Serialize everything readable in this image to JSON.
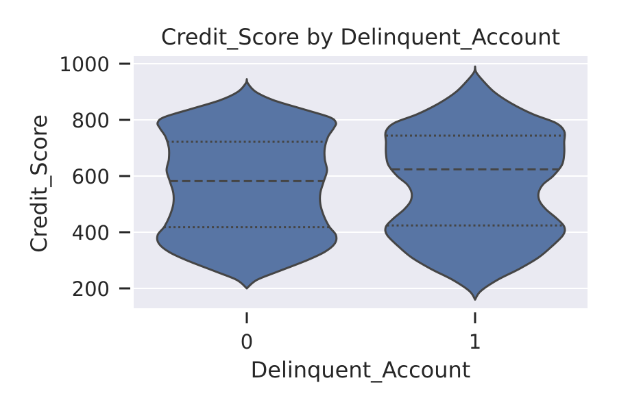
{
  "chart_data": {
    "type": "violin",
    "title": "Credit_Score by Delinquent_Account",
    "xlabel": "Delinquent_Account",
    "ylabel": "Credit_Score",
    "categories": [
      "0",
      "1"
    ],
    "ylim": [
      130,
      1010
    ],
    "yticks": [
      200,
      400,
      600,
      800,
      1000
    ],
    "grid": true,
    "violins": [
      {
        "category": "0",
        "min": 200,
        "max": 945,
        "q1": 418,
        "median": 582,
        "q3": 722,
        "density": [
          [
            200,
            0.0
          ],
          [
            230,
            0.09
          ],
          [
            260,
            0.28
          ],
          [
            300,
            0.54
          ],
          [
            330,
            0.7
          ],
          [
            360,
            0.79
          ],
          [
            390,
            0.8
          ],
          [
            420,
            0.74
          ],
          [
            460,
            0.69
          ],
          [
            500,
            0.66
          ],
          [
            540,
            0.66
          ],
          [
            580,
            0.69
          ],
          [
            620,
            0.72
          ],
          [
            660,
            0.7
          ],
          [
            700,
            0.7
          ],
          [
            740,
            0.73
          ],
          [
            770,
            0.78
          ],
          [
            790,
            0.8
          ],
          [
            810,
            0.74
          ],
          [
            840,
            0.49
          ],
          [
            870,
            0.24
          ],
          [
            900,
            0.08
          ],
          [
            930,
            0.01
          ],
          [
            945,
            0.0
          ]
        ]
      },
      {
        "category": "1",
        "min": 160,
        "max": 990,
        "q1": 424,
        "median": 624,
        "q3": 744,
        "density": [
          [
            160,
            0.0
          ],
          [
            190,
            0.05
          ],
          [
            230,
            0.2
          ],
          [
            270,
            0.4
          ],
          [
            310,
            0.57
          ],
          [
            350,
            0.69
          ],
          [
            390,
            0.79
          ],
          [
            420,
            0.8
          ],
          [
            450,
            0.73
          ],
          [
            480,
            0.64
          ],
          [
            510,
            0.58
          ],
          [
            540,
            0.57
          ],
          [
            570,
            0.61
          ],
          [
            600,
            0.7
          ],
          [
            640,
            0.78
          ],
          [
            680,
            0.8
          ],
          [
            720,
            0.8
          ],
          [
            760,
            0.8
          ],
          [
            790,
            0.72
          ],
          [
            820,
            0.52
          ],
          [
            860,
            0.32
          ],
          [
            900,
            0.17
          ],
          [
            940,
            0.07
          ],
          [
            970,
            0.01
          ],
          [
            990,
            0.0
          ]
        ]
      }
    ],
    "colors": {
      "fill": "#5875a4",
      "outline": "#454545",
      "plot_background": "#eaeaf2",
      "grid": "#ffffff",
      "text": "#262626"
    }
  }
}
